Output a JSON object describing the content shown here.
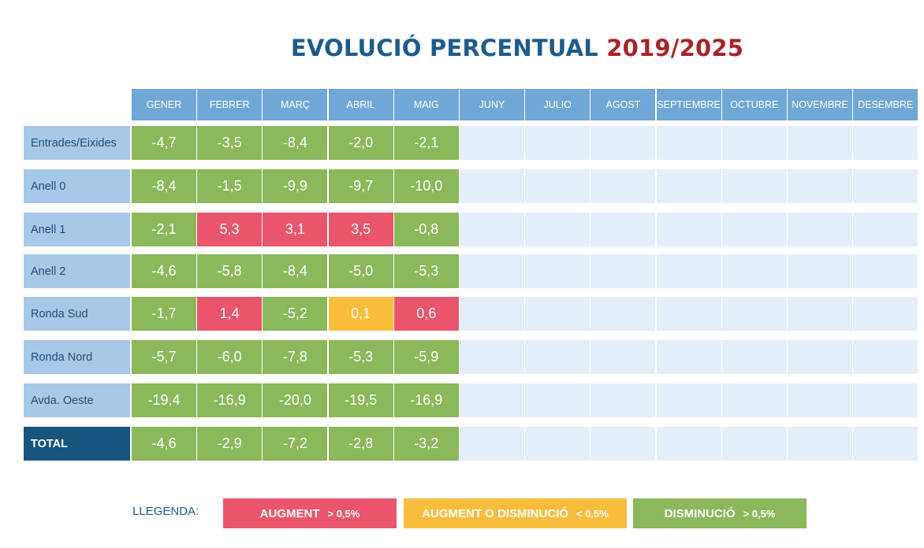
{
  "title": {
    "main": "EVOLUCIÓ PERCENTUAL",
    "years": "2019/2025"
  },
  "colors": {
    "header": "#6fa7d6",
    "row_label": "#a8c8e8",
    "total_label": "#17557e",
    "empty": "#e3eef9",
    "green": "#8ab85a",
    "red": "#e9556b",
    "yellow": "#f8bd3a"
  },
  "chart_data": {
    "type": "table",
    "columns": [
      "GENER",
      "FEBRER",
      "MARÇ",
      "ABRIL",
      "MAIG",
      "JUNY",
      "JULIO",
      "AGOST",
      "SEPTIEMBRE",
      "OCTUBRE",
      "NOVEMBRE",
      "DESEMBRE"
    ],
    "rows": [
      {
        "label": "Entrades/Eixides",
        "values": [
          "-4,7",
          "-3,5",
          "-8,4",
          "-2,0",
          "-2,1"
        ],
        "colors": [
          "green",
          "green",
          "green",
          "green",
          "green"
        ]
      },
      {
        "label": "Anell 0",
        "values": [
          "-8,4",
          "-1,5",
          "-9,9",
          "-9,7",
          "-10,0"
        ],
        "colors": [
          "green",
          "green",
          "green",
          "green",
          "green"
        ]
      },
      {
        "label": "Anell 1",
        "values": [
          "-2,1",
          "5,3",
          "3,1",
          "3,5",
          "-0,8"
        ],
        "colors": [
          "green",
          "red",
          "red",
          "red",
          "green"
        ]
      },
      {
        "label": "Anell 2",
        "values": [
          "-4,6",
          "-5,8",
          "-8,4",
          "-5,0",
          "-5,3"
        ],
        "colors": [
          "green",
          "green",
          "green",
          "green",
          "green"
        ]
      },
      {
        "label": "Ronda Sud",
        "values": [
          "-1,7",
          "1,4",
          "-5,2",
          "0,1",
          "0,6"
        ],
        "colors": [
          "green",
          "red",
          "green",
          "yellow",
          "red"
        ]
      },
      {
        "label": "Ronda Nord",
        "values": [
          "-5,7",
          "-6,0",
          "-7,8",
          "-5,3",
          "-5,9"
        ],
        "colors": [
          "green",
          "green",
          "green",
          "green",
          "green"
        ]
      },
      {
        "label": "Avda. Oeste",
        "values": [
          "-19,4",
          "-16,9",
          "-20,0",
          "-19,5",
          "-16,9"
        ],
        "colors": [
          "green",
          "green",
          "green",
          "green",
          "green"
        ]
      },
      {
        "label": "TOTAL",
        "values": [
          "-4,6",
          "-2,9",
          "-7,2",
          "-2,8",
          "-3,2"
        ],
        "colors": [
          "green",
          "green",
          "green",
          "green",
          "green"
        ],
        "is_total": true
      }
    ]
  },
  "legend": {
    "label": "LLEGENDA:",
    "items": [
      {
        "text": "AUGMENT",
        "threshold": "> 0,5%",
        "color": "red"
      },
      {
        "text": "AUGMENT O DISMINUCIÓ",
        "threshold": "< 0,5%",
        "color": "yellow"
      },
      {
        "text": "DISMINUCIÓ",
        "threshold": "> 0,5%",
        "color": "green"
      }
    ]
  }
}
